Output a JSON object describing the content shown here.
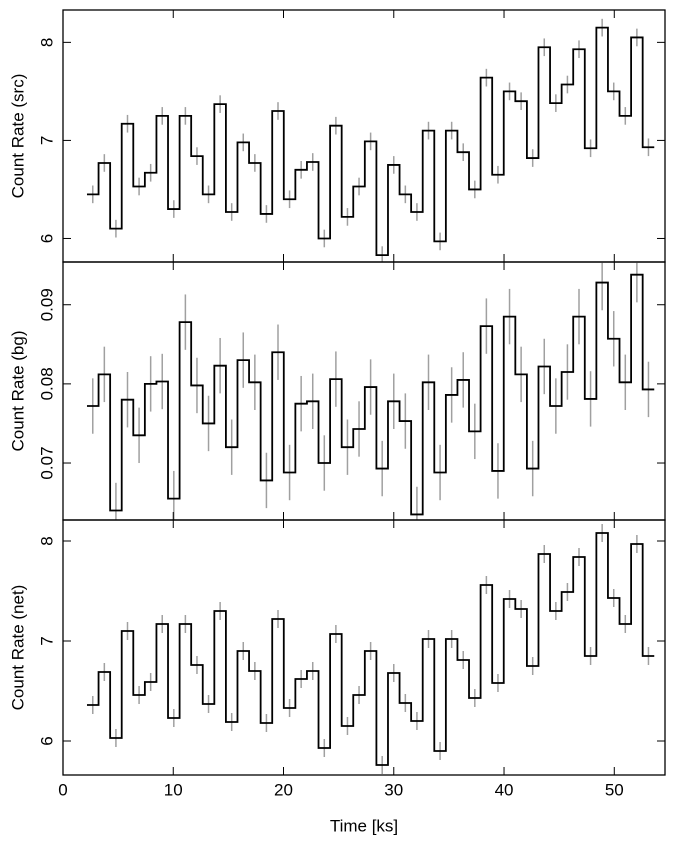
{
  "chart_data": [
    {
      "type": "step",
      "ylabel": "Count Rate (src)",
      "x": [
        2.7,
        3.75,
        4.8,
        5.85,
        6.9,
        7.95,
        9.0,
        10.05,
        11.1,
        12.15,
        13.2,
        14.25,
        15.3,
        16.35,
        17.4,
        18.45,
        19.5,
        20.55,
        21.6,
        22.65,
        23.7,
        24.75,
        25.8,
        26.85,
        27.9,
        28.95,
        30.0,
        31.05,
        32.1,
        33.15,
        34.2,
        35.25,
        36.3,
        37.35,
        38.4,
        39.45,
        40.5,
        41.55,
        42.6,
        43.65,
        44.7,
        45.75,
        46.8,
        47.85,
        48.9,
        49.95,
        51.0,
        52.05,
        53.1
      ],
      "values": [
        6.45,
        6.77,
        6.1,
        7.17,
        6.53,
        6.67,
        7.25,
        6.3,
        7.25,
        6.84,
        6.45,
        7.37,
        6.27,
        6.98,
        6.77,
        6.25,
        7.3,
        6.4,
        6.7,
        6.78,
        6.0,
        7.15,
        6.22,
        6.53,
        6.99,
        5.83,
        6.75,
        6.45,
        6.27,
        7.1,
        5.97,
        7.1,
        6.88,
        6.5,
        7.64,
        6.65,
        7.5,
        7.4,
        6.82,
        7.95,
        7.38,
        7.57,
        7.93,
        6.92,
        8.15,
        7.5,
        7.25,
        8.05,
        6.93
      ],
      "error": 0.09,
      "color": "#000000",
      "error_color": "#a0a0a0",
      "xlim": [
        0,
        54.6
      ],
      "ylim": [
        5.76,
        8.33
      ],
      "yticks": [
        6,
        7,
        8
      ]
    },
    {
      "type": "step",
      "ylabel": "Count Rate (bg)",
      "x": [
        2.7,
        3.75,
        4.8,
        5.85,
        6.9,
        7.95,
        9.0,
        10.05,
        11.1,
        12.15,
        13.2,
        14.25,
        15.3,
        16.35,
        17.4,
        18.45,
        19.5,
        20.55,
        21.6,
        22.65,
        23.7,
        24.75,
        25.8,
        26.85,
        27.9,
        28.95,
        30.0,
        31.05,
        32.1,
        33.15,
        34.2,
        35.25,
        36.3,
        37.35,
        38.4,
        39.45,
        40.5,
        41.55,
        42.6,
        43.65,
        44.7,
        45.75,
        46.8,
        47.85,
        48.9,
        49.95,
        51.0,
        52.05,
        53.1
      ],
      "values": [
        0.0772,
        0.0812,
        0.064,
        0.078,
        0.0735,
        0.08,
        0.0803,
        0.0655,
        0.0878,
        0.0798,
        0.075,
        0.0823,
        0.072,
        0.083,
        0.0802,
        0.0678,
        0.084,
        0.0688,
        0.0775,
        0.0778,
        0.07,
        0.0806,
        0.072,
        0.0743,
        0.0796,
        0.0693,
        0.0778,
        0.0753,
        0.0635,
        0.0802,
        0.0688,
        0.0786,
        0.0805,
        0.074,
        0.0873,
        0.069,
        0.0885,
        0.0812,
        0.0693,
        0.0822,
        0.0772,
        0.0815,
        0.0885,
        0.0781,
        0.0928,
        0.0857,
        0.0802,
        0.0938,
        0.0793
      ],
      "error": 0.0035,
      "color": "#000000",
      "error_color": "#a0a0a0",
      "xlim": [
        0,
        54.6
      ],
      "ylim": [
        0.0628,
        0.0954
      ],
      "yticks": [
        0.07,
        0.08,
        0.09
      ]
    },
    {
      "type": "step",
      "ylabel": "Count Rate (net)",
      "xlabel": "Time [ks]",
      "x": [
        2.7,
        3.75,
        4.8,
        5.85,
        6.9,
        7.95,
        9.0,
        10.05,
        11.1,
        12.15,
        13.2,
        14.25,
        15.3,
        16.35,
        17.4,
        18.45,
        19.5,
        20.55,
        21.6,
        22.65,
        23.7,
        24.75,
        25.8,
        26.85,
        27.9,
        28.95,
        30.0,
        31.05,
        32.1,
        33.15,
        34.2,
        35.25,
        36.3,
        37.35,
        38.4,
        39.45,
        40.5,
        41.55,
        42.6,
        43.65,
        44.7,
        45.75,
        46.8,
        47.85,
        48.9,
        49.95,
        51.0,
        52.05,
        53.1
      ],
      "values": [
        6.36,
        6.69,
        6.03,
        7.1,
        6.46,
        6.59,
        7.17,
        6.23,
        7.17,
        6.76,
        6.37,
        7.3,
        6.19,
        6.9,
        6.7,
        6.18,
        7.22,
        6.33,
        6.62,
        6.7,
        5.93,
        7.07,
        6.15,
        6.46,
        6.9,
        5.76,
        6.68,
        6.38,
        6.2,
        7.02,
        5.9,
        7.02,
        6.81,
        6.43,
        7.56,
        6.58,
        7.42,
        7.32,
        6.75,
        7.87,
        7.3,
        7.49,
        7.84,
        6.85,
        8.08,
        7.43,
        7.17,
        7.97,
        6.85
      ],
      "error": 0.09,
      "color": "#000000",
      "error_color": "#a0a0a0",
      "xlim": [
        0,
        54.6
      ],
      "ylim": [
        5.66,
        8.21
      ],
      "yticks": [
        6,
        7,
        8
      ],
      "xticks": [
        0,
        10,
        20,
        30,
        40,
        50
      ]
    }
  ]
}
